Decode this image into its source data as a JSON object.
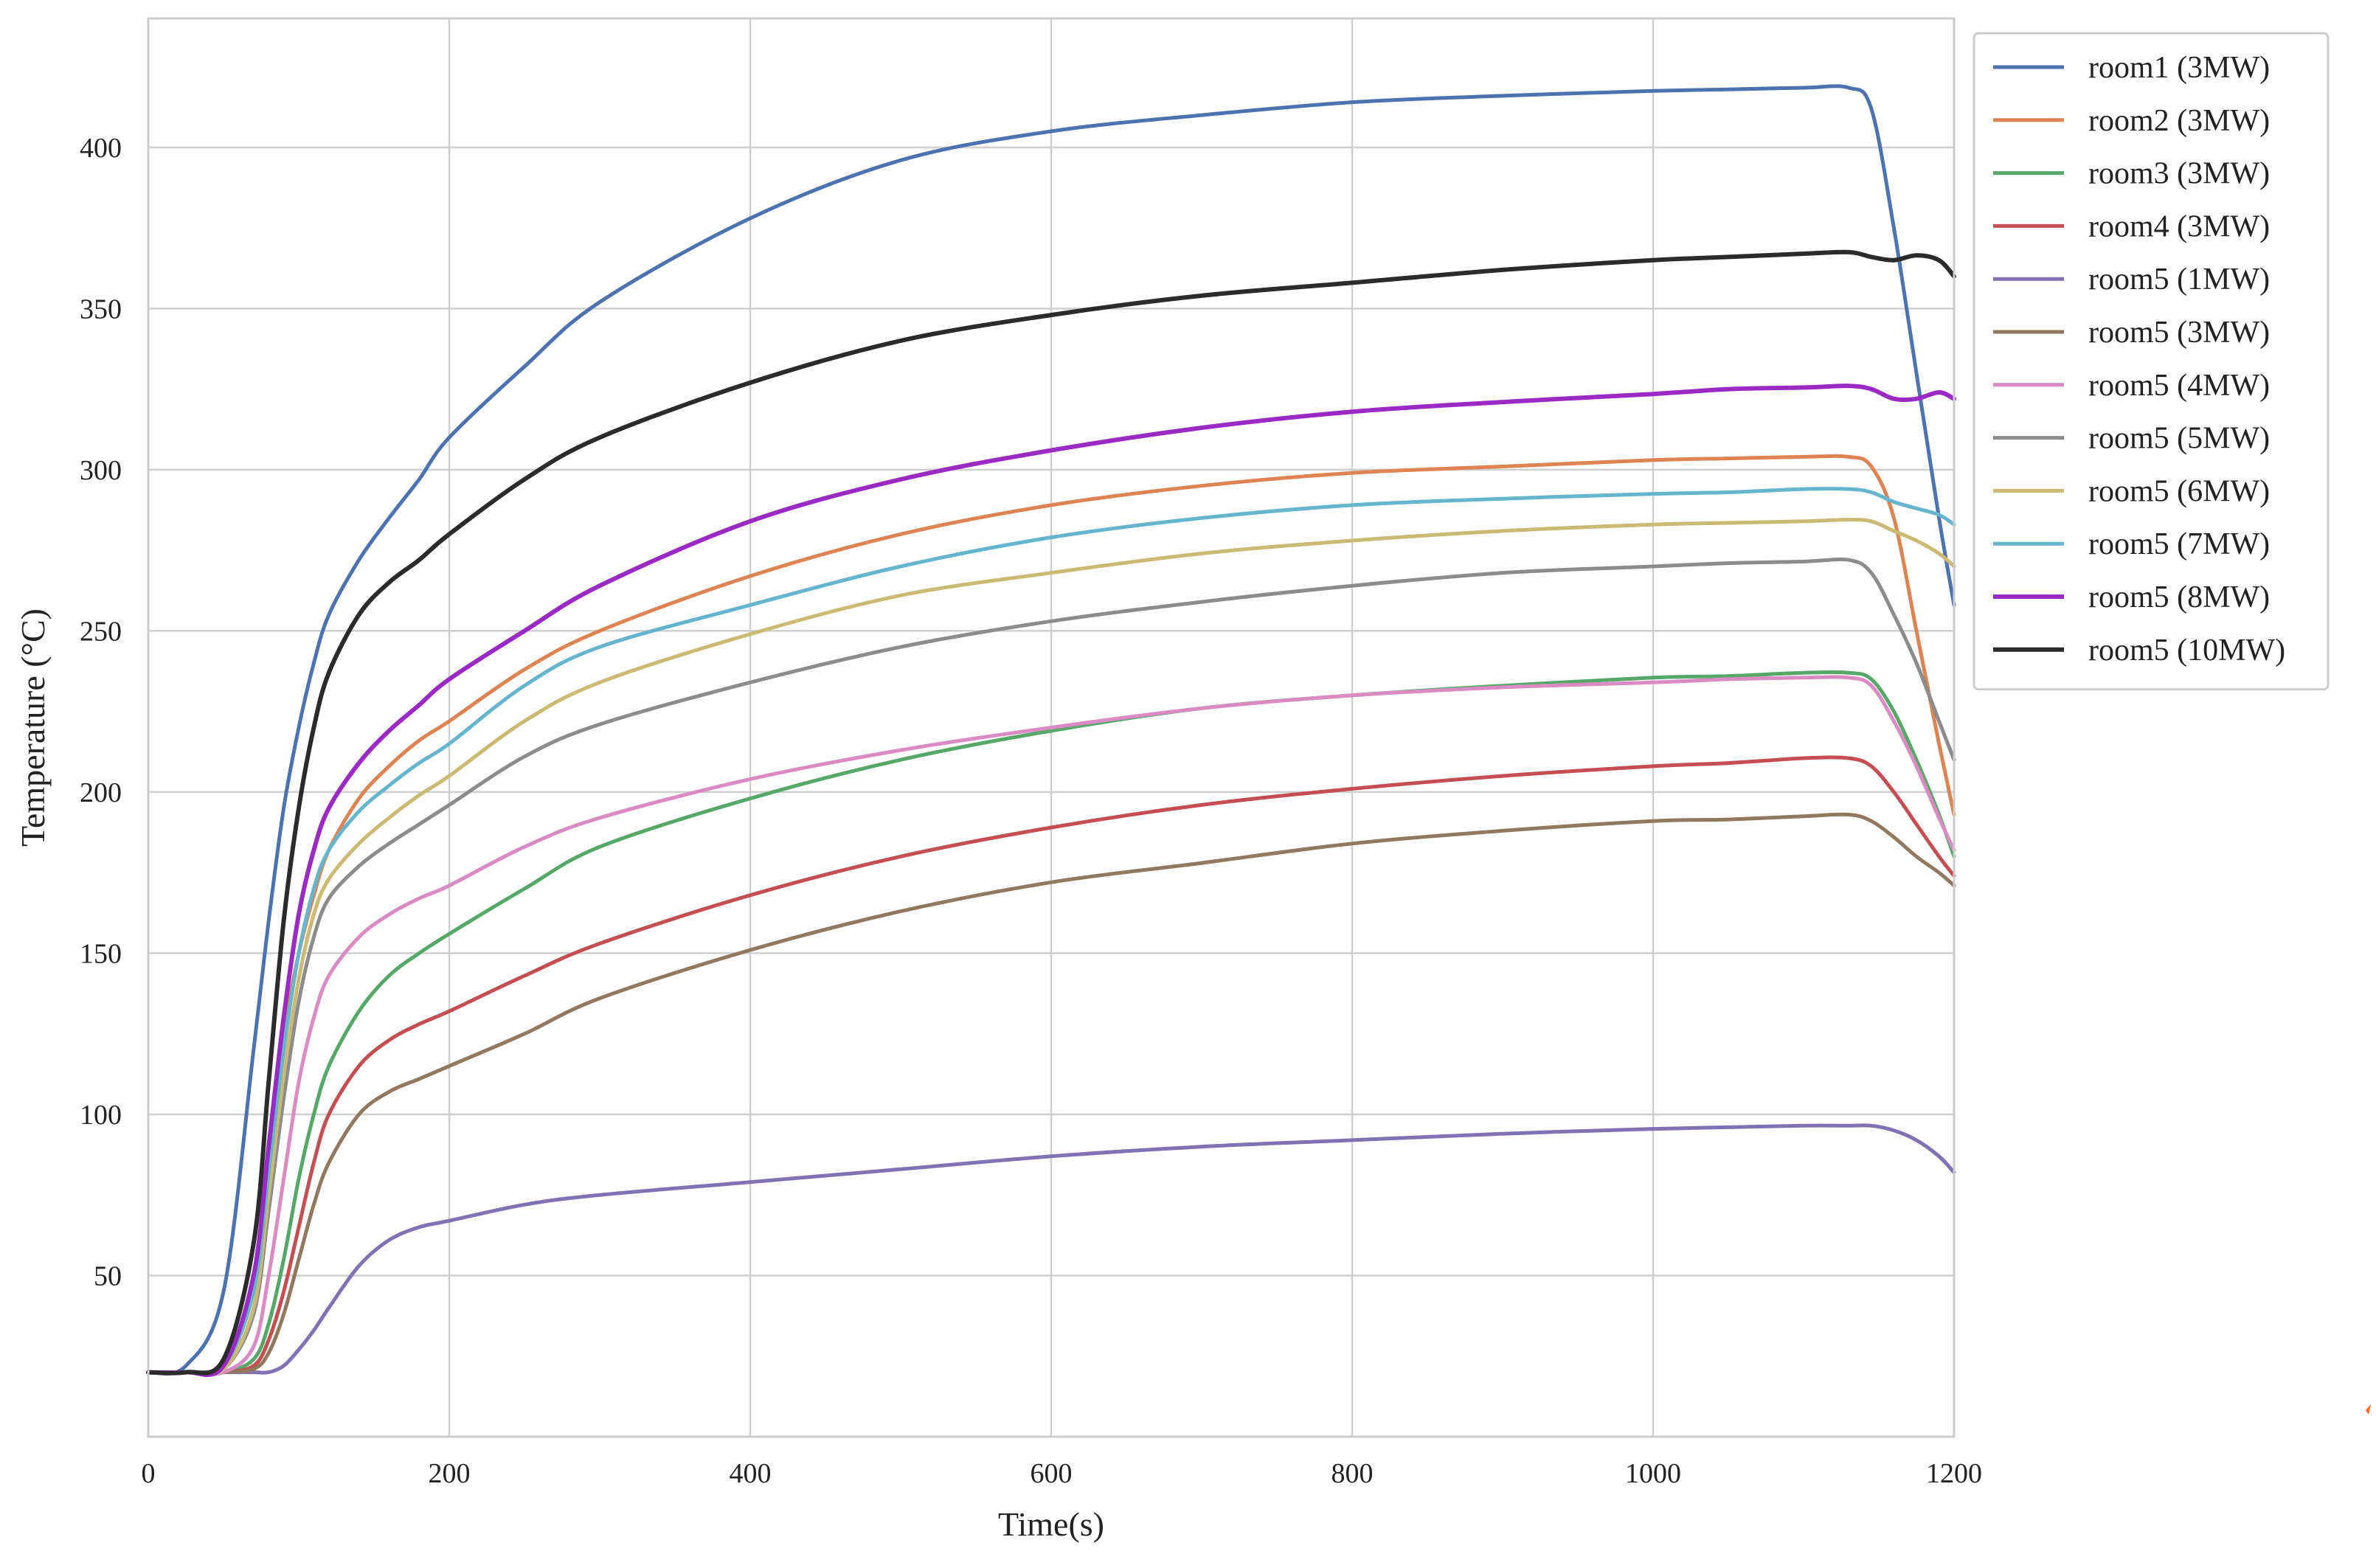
{
  "chart_data": {
    "type": "line",
    "title": "",
    "xlabel": "Time(s)",
    "ylabel": "Temperature (°C)",
    "xlim": [
      0,
      1200
    ],
    "ylim": [
      0,
      440
    ],
    "xticks": [
      0,
      200,
      400,
      600,
      800,
      1000,
      1200
    ],
    "yticks": [
      50,
      100,
      150,
      200,
      250,
      300,
      350,
      400
    ],
    "grid": true,
    "legend_position": "top-right outside plot",
    "x": [
      0,
      25,
      50,
      70,
      80,
      90,
      100,
      110,
      120,
      140,
      160,
      180,
      200,
      250,
      300,
      400,
      500,
      600,
      700,
      800,
      900,
      1000,
      1050,
      1100,
      1130,
      1145,
      1160,
      1175,
      1190,
      1200
    ],
    "series": [
      {
        "name": "room1 (3MW)",
        "color": "#4c72b0",
        "width": 5,
        "values": [
          20,
          22,
          45,
          120,
          160,
          195,
          220,
          240,
          255,
          272,
          285,
          297,
          310,
          332,
          352,
          378,
          396,
          405,
          410,
          414,
          416,
          417.5,
          418,
          418.5,
          418.5,
          412,
          375,
          330,
          285,
          258
        ]
      },
      {
        "name": "room2 (3MW)",
        "color": "#dd8452",
        "width": 5,
        "values": [
          20,
          20,
          22,
          50,
          90,
          125,
          150,
          168,
          182,
          198,
          208,
          216,
          222,
          238,
          250,
          267,
          280,
          289,
          295,
          299,
          301,
          303,
          303.5,
          304,
          304,
          301,
          285,
          250,
          215,
          193
        ]
      },
      {
        "name": "room3 (3MW)",
        "color": "#55a868",
        "width": 5,
        "values": [
          20,
          20,
          20,
          24,
          35,
          55,
          80,
          100,
          115,
          132,
          143,
          150,
          156,
          170,
          183,
          198,
          210,
          219,
          226,
          230,
          233,
          235.5,
          236,
          237,
          237,
          235,
          225,
          210,
          193,
          180
        ]
      },
      {
        "name": "room4 (3MW)",
        "color": "#c44e52",
        "width": 5,
        "values": [
          20,
          20,
          20,
          22,
          30,
          45,
          65,
          85,
          100,
          115,
          123,
          128,
          132,
          143,
          153,
          168,
          180,
          189,
          196,
          201,
          205,
          208,
          209,
          210.5,
          210.5,
          208,
          200,
          190,
          180,
          174
        ]
      },
      {
        "name": "room5 (1MW)",
        "color": "#8172b3",
        "width": 5,
        "values": [
          20,
          20,
          20,
          20,
          20,
          22,
          27,
          33,
          40,
          53,
          61,
          65,
          67,
          72,
          75,
          79,
          83,
          87,
          90,
          92,
          94,
          95.5,
          96,
          96.5,
          96.5,
          96.5,
          95,
          92,
          87,
          82
        ]
      },
      {
        "name": "room5 (3MW)",
        "color": "#937860",
        "width": 5,
        "values": [
          20,
          20,
          20,
          21,
          26,
          38,
          55,
          72,
          85,
          100,
          107,
          111,
          115,
          125,
          136,
          151,
          163,
          172,
          178,
          184,
          188,
          191,
          191.5,
          192.5,
          193,
          191,
          186,
          180,
          175,
          171
        ]
      },
      {
        "name": "room5 (4MW)",
        "color": "#da8bc3",
        "width": 5,
        "values": [
          20,
          20,
          20,
          28,
          50,
          80,
          110,
          130,
          143,
          155,
          162,
          167,
          171,
          183,
          192,
          204,
          213,
          220,
          226,
          230,
          232.5,
          234,
          235,
          235.5,
          235.5,
          233,
          222,
          208,
          192,
          182
        ]
      },
      {
        "name": "room5 (5MW)",
        "color": "#8c8c8c",
        "width": 5,
        "values": [
          20,
          20,
          21,
          38,
          70,
          105,
          135,
          155,
          167,
          177,
          184,
          190,
          196,
          211,
          221,
          234,
          245,
          253,
          259,
          264,
          268,
          270,
          271,
          271.5,
          272,
          268,
          255,
          240,
          222,
          210
        ]
      },
      {
        "name": "room5 (6MW)",
        "color": "#ccb974",
        "width": 5,
        "values": [
          20,
          20,
          21,
          40,
          75,
          112,
          142,
          162,
          173,
          184,
          192,
          199,
          205,
          222,
          234,
          249,
          261,
          268,
          274,
          278,
          281,
          283,
          283.5,
          284,
          284.5,
          284,
          281,
          278,
          274,
          270
        ]
      },
      {
        "name": "room5 (7MW)",
        "color": "#64b5cd",
        "width": 5,
        "values": [
          20,
          20,
          22,
          45,
          82,
          120,
          150,
          170,
          182,
          194,
          202,
          209,
          215,
          233,
          245,
          258,
          270,
          279,
          285,
          289,
          291,
          292.5,
          293,
          294,
          294,
          293,
          290,
          288,
          286,
          283
        ]
      },
      {
        "name": "room5 (8MW)",
        "color": "#9b29c4",
        "width": 6,
        "values": [
          20,
          20,
          22,
          50,
          90,
          130,
          162,
          182,
          195,
          209,
          219,
          227,
          235,
          250,
          264,
          284,
          297,
          306,
          313,
          318,
          321,
          323.5,
          325,
          325.5,
          326,
          325,
          322,
          322,
          324,
          322
        ]
      },
      {
        "name": "room5 (10MW)",
        "color": "#2b2b2b",
        "width": 6,
        "values": [
          20,
          20,
          24,
          60,
          110,
          160,
          195,
          220,
          237,
          255,
          265,
          272,
          280,
          297,
          310,
          327,
          340,
          348,
          354,
          358,
          362,
          365,
          366,
          367,
          367.5,
          366,
          365,
          366.5,
          365,
          360
        ]
      }
    ]
  }
}
